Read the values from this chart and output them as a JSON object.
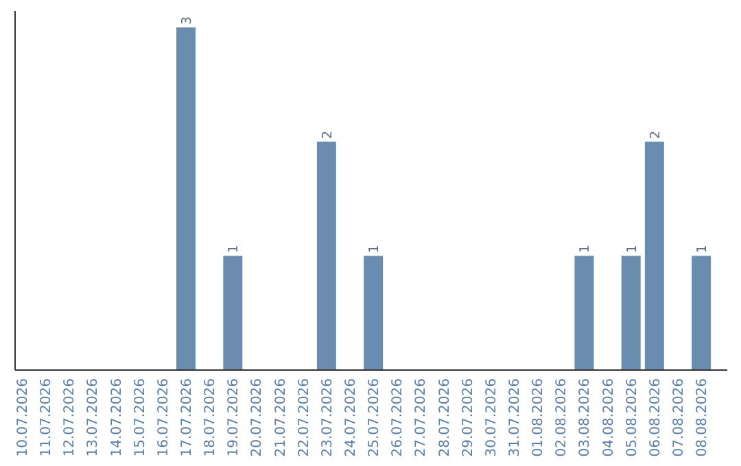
{
  "chart_data": {
    "type": "bar",
    "categories": [
      "10.07.2026",
      "11.07.2026",
      "12.07.2026",
      "13.07.2026",
      "14.07.2026",
      "15.07.2026",
      "16.07.2026",
      "17.07.2026",
      "18.07.2026",
      "19.07.2026",
      "20.07.2026",
      "21.07.2026",
      "22.07.2026",
      "23.07.2026",
      "24.07.2026",
      "25.07.2026",
      "26.07.2026",
      "27.07.2026",
      "28.07.2026",
      "29.07.2026",
      "30.07.2026",
      "31.07.2026",
      "01.08.2026",
      "02.08.2026",
      "03.08.2026",
      "04.08.2026",
      "05.08.2026",
      "06.08.2026",
      "07.08.2026",
      "08.08.2026"
    ],
    "values": [
      0,
      0,
      0,
      0,
      0,
      0,
      0,
      3,
      0,
      1,
      0,
      0,
      0,
      2,
      0,
      1,
      0,
      0,
      0,
      0,
      0,
      0,
      0,
      0,
      1,
      0,
      1,
      2,
      0,
      1
    ],
    "value_labels": [
      null,
      null,
      null,
      null,
      null,
      null,
      null,
      "3",
      null,
      "1",
      null,
      null,
      null,
      "2",
      null,
      "1",
      null,
      null,
      null,
      null,
      null,
      null,
      null,
      null,
      "1",
      null,
      "1",
      "2",
      null,
      "1"
    ],
    "color": "#6a8caf",
    "ylim": [
      0,
      3
    ],
    "tick_labels": "x"
  }
}
